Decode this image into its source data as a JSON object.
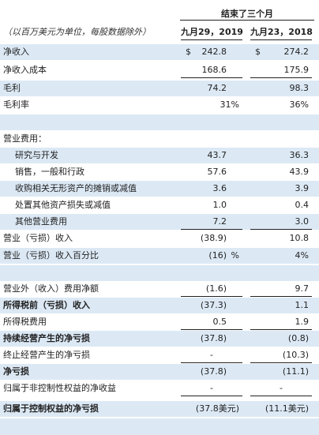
{
  "header": {
    "group_title": "结束了三个月",
    "units_note": "（以百万美元为单位，每股数据除外）",
    "col1": "九月29，2019",
    "col2": "九月23，2018"
  },
  "rows": {
    "net_revenue": {
      "label": "净收入",
      "c1_prefix": "$",
      "c1": "242.8",
      "c2_prefix": "$",
      "c2": "274.2"
    },
    "cost_of_revenue": {
      "label": "净收入成本",
      "c1": "168.6",
      "c2": "175.9"
    },
    "gross_profit": {
      "label": "毛利",
      "c1": "74.2",
      "c2": "98.3"
    },
    "gross_margin": {
      "label": "毛利率",
      "c1": "31%",
      "c2": "36%"
    },
    "opex_title": {
      "label": "营业费用："
    },
    "rnd": {
      "label": "研究与开发",
      "c1": "43.7",
      "c2": "36.3"
    },
    "sga": {
      "label": "销售，一般和行政",
      "c1": "57.6",
      "c2": "43.9"
    },
    "amortization": {
      "label": "收购相关无形资产的摊销或减值",
      "c1": "3.6",
      "c2": "3.9"
    },
    "disposal": {
      "label": "处置其他资产损失或减值",
      "c1": "1.0",
      "c2": "0.4"
    },
    "other_opex": {
      "label": "其他营业费用",
      "c1": "7.2",
      "c2": "3.0"
    },
    "operating_income": {
      "label": "营业（亏损）收入",
      "c1": "(38.9)",
      "c2": "10.8"
    },
    "operating_margin": {
      "label": "营业（亏损）收入百分比",
      "c1": "(16)",
      "c1_unit": "%",
      "c2": "4%"
    },
    "non_operating": {
      "label": "营业外（收入）费用净额",
      "c1": "(1.6)",
      "c2": "9.7"
    },
    "pretax": {
      "label": "所得税前（亏损）收入",
      "c1": "(37.3)",
      "c2": "1.1"
    },
    "tax": {
      "label": "所得税费用",
      "c1": "0.5",
      "c2": "1.9"
    },
    "continuing": {
      "label": "持续经营产生的净亏损",
      "c1": "(37.8)",
      "c2": "(0.8)"
    },
    "discontinued": {
      "label": "终止经营产生的净亏损",
      "c1": "-",
      "c2": "(10.3)"
    },
    "net_loss": {
      "label": "净亏损",
      "c1": "(37.8)",
      "c2": "(11.1)"
    },
    "nci": {
      "label": "归属于非控制性权益的净收益",
      "c1": "-",
      "c2": "-"
    },
    "controlling": {
      "label": "归属于控制权益的净亏损",
      "c1": "(37.8美元)",
      "c2": "(11.1美元)"
    }
  },
  "colors": {
    "row_shade": "#dce9f5",
    "text": "#222222"
  }
}
